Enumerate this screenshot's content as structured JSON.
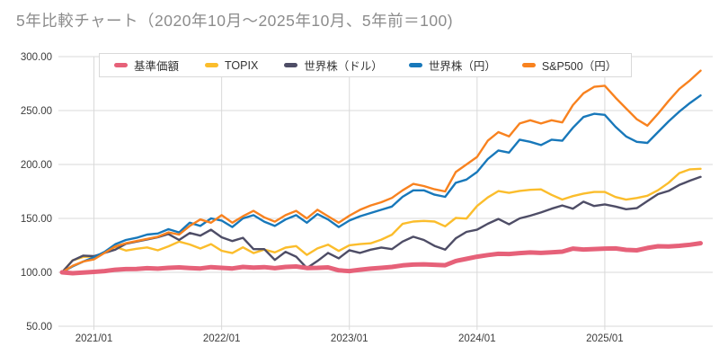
{
  "title": "5年比較チャート（2020年10月～2025年10月、5年前＝100)",
  "colors": {
    "fund_pink": "#e66179",
    "topix_yellow": "#fbbd2c",
    "world_usd_dark": "#4e4d66",
    "world_jpy_blue": "#1878ba",
    "sp500_jpy_orange": "#f8821f",
    "grid": "#d9d9d9",
    "axis_text": "#3c3c3c",
    "title_text": "#8c8c8c"
  },
  "legend": {
    "items": [
      {
        "label": "基準価額",
        "color": "#e66179"
      },
      {
        "label": "TOPIX",
        "color": "#fbbd2c"
      },
      {
        "label": "世界株（ドル）",
        "color": "#4e4d66"
      },
      {
        "label": "世界株（円）",
        "color": "#1878ba"
      },
      {
        "label": "S&P500（円）",
        "color": "#f8821f"
      }
    ]
  },
  "y_axis": {
    "ticks": [
      {
        "value": 300,
        "label": "300.00"
      },
      {
        "value": 250,
        "label": "250.00"
      },
      {
        "value": 200,
        "label": "200.00"
      },
      {
        "value": 150,
        "label": "150.00"
      },
      {
        "value": 100,
        "label": "100.00"
      },
      {
        "value": 50,
        "label": "50.00"
      }
    ]
  },
  "x_axis": {
    "ticks": [
      {
        "index": 3,
        "label": "2021/01"
      },
      {
        "index": 15,
        "label": "2022/01"
      },
      {
        "index": 27,
        "label": "2023/01"
      },
      {
        "index": 39,
        "label": "2024/01"
      },
      {
        "index": 51,
        "label": "2025/01"
      }
    ]
  },
  "chart_data": {
    "type": "line",
    "title": "5年比較チャート（2020年10月～2025年10月、5年前＝100)",
    "xlabel": "",
    "ylabel": "",
    "ylim": [
      50,
      300
    ],
    "grid": true,
    "legend_position": "top",
    "x": [
      "2020/10",
      "2020/11",
      "2020/12",
      "2021/01",
      "2021/02",
      "2021/03",
      "2021/04",
      "2021/05",
      "2021/06",
      "2021/07",
      "2021/08",
      "2021/09",
      "2021/10",
      "2021/11",
      "2021/12",
      "2022/01",
      "2022/02",
      "2022/03",
      "2022/04",
      "2022/05",
      "2022/06",
      "2022/07",
      "2022/08",
      "2022/09",
      "2022/10",
      "2022/11",
      "2022/12",
      "2023/01",
      "2023/02",
      "2023/03",
      "2023/04",
      "2023/05",
      "2023/06",
      "2023/07",
      "2023/08",
      "2023/09",
      "2023/10",
      "2023/11",
      "2023/12",
      "2024/01",
      "2024/02",
      "2024/03",
      "2024/04",
      "2024/05",
      "2024/06",
      "2024/07",
      "2024/08",
      "2024/09",
      "2024/10",
      "2024/11",
      "2024/12",
      "2025/01",
      "2025/02",
      "2025/03",
      "2025/04",
      "2025/05",
      "2025/06",
      "2025/07",
      "2025/08",
      "2025/09",
      "2025/10"
    ],
    "series": [
      {
        "name": "TOPIX",
        "color": "#fbbd2c",
        "width": 2.4,
        "values": [
          100.0,
          111.1,
          114.3,
          114.5,
          118.1,
          123.7,
          120.2,
          121.8,
          123.1,
          120.4,
          124.1,
          128.5,
          125.8,
          122.1,
          126.2,
          120.0,
          117.8,
          123.2,
          117.8,
          121.1,
          118.5,
          122.9,
          124.3,
          116.2,
          122.2,
          125.7,
          119.8,
          125.1,
          126.2,
          126.9,
          130.3,
          134.9,
          144.9,
          147.1,
          147.7,
          147.1,
          142.7,
          150.4,
          149.8,
          161.5,
          169.4,
          175.3,
          173.7,
          175.5,
          176.5,
          176.9,
          171.8,
          167.5,
          170.7,
          173.0,
          174.5,
          174.5,
          169.8,
          167.4,
          168.9,
          171.0,
          176.1,
          183.1,
          192.0,
          195.5,
          196.0
        ]
      },
      {
        "name": "世界株（ドル）",
        "color": "#4e4d66",
        "width": 2.4,
        "values": [
          100.0,
          111.0,
          115.5,
          115.0,
          118.0,
          121.0,
          126.5,
          128.5,
          130.5,
          132.5,
          135.5,
          130.0,
          136.5,
          134.0,
          139.5,
          132.5,
          129.0,
          132.0,
          121.5,
          121.5,
          111.5,
          119.0,
          114.5,
          104.0,
          110.5,
          118.0,
          113.0,
          120.5,
          118.0,
          121.0,
          123.0,
          121.5,
          128.5,
          133.0,
          130.0,
          124.5,
          121.0,
          131.5,
          137.5,
          139.5,
          145.0,
          149.5,
          144.5,
          150.0,
          152.5,
          155.5,
          159.0,
          162.0,
          159.0,
          165.5,
          161.5,
          163.0,
          161.0,
          158.5,
          159.5,
          166.0,
          172.5,
          175.5,
          181.0,
          185.0,
          188.5
        ]
      },
      {
        "name": "世界株（円）",
        "color": "#1878ba",
        "width": 2.4,
        "values": [
          100.0,
          105.5,
          110.0,
          114.0,
          119.0,
          126.0,
          130.0,
          132.0,
          135.0,
          136.0,
          140.0,
          137.0,
          146.0,
          143.0,
          150.0,
          148.0,
          142.0,
          150.0,
          153.0,
          147.0,
          143.0,
          149.0,
          153.0,
          146.0,
          154.0,
          149.0,
          142.0,
          148.0,
          152.0,
          155.0,
          158.0,
          161.0,
          170.0,
          176.0,
          176.0,
          172.0,
          170.0,
          183.0,
          186.0,
          193.0,
          205.0,
          213.0,
          211.0,
          223.0,
          221.0,
          218.0,
          223.0,
          222.0,
          234.0,
          244.0,
          247.0,
          246.0,
          235.0,
          226.0,
          221.0,
          220.0,
          230.0,
          240.0,
          249.0,
          257.0,
          264.0
        ]
      },
      {
        "name": "S&P500（円）",
        "color": "#f8821f",
        "width": 2.4,
        "values": [
          100.0,
          106.0,
          110.0,
          112.0,
          118.0,
          124.0,
          127.0,
          129.0,
          131.0,
          133.0,
          137.0,
          135.0,
          143.0,
          149.0,
          146.0,
          153.0,
          146.0,
          152.0,
          157.0,
          151.0,
          147.0,
          153.0,
          157.0,
          150.0,
          158.0,
          152.0,
          146.0,
          152.5,
          158.0,
          162.0,
          165.0,
          169.0,
          176.0,
          182.0,
          180.0,
          177.0,
          175.0,
          193.0,
          200.0,
          207.0,
          222.0,
          230.0,
          226.0,
          238.0,
          241.0,
          238.0,
          241.0,
          239.0,
          255.0,
          266.0,
          272.0,
          273.0,
          262.0,
          252.0,
          242.0,
          236.0,
          247.0,
          259.0,
          270.0,
          278.0,
          287.0
        ]
      },
      {
        "name": "基準価額",
        "color": "#e66179",
        "width": 5,
        "values": [
          100.0,
          99.2,
          99.8,
          100.4,
          101.2,
          102.4,
          103.0,
          103.2,
          103.8,
          103.4,
          104.2,
          104.6,
          104.0,
          103.6,
          104.8,
          104.2,
          103.6,
          105.0,
          104.4,
          104.8,
          103.8,
          105.0,
          105.4,
          104.0,
          104.2,
          104.6,
          101.8,
          101.2,
          102.4,
          103.4,
          104.2,
          105.0,
          106.4,
          107.2,
          107.4,
          107.0,
          106.6,
          110.5,
          112.5,
          114.5,
          116.0,
          117.2,
          117.0,
          117.8,
          118.4,
          118.0,
          118.6,
          119.2,
          122.0,
          121.2,
          121.6,
          122.0,
          122.2,
          120.8,
          120.4,
          122.6,
          124.2,
          124.0,
          124.6,
          125.6,
          127.0
        ]
      }
    ]
  }
}
